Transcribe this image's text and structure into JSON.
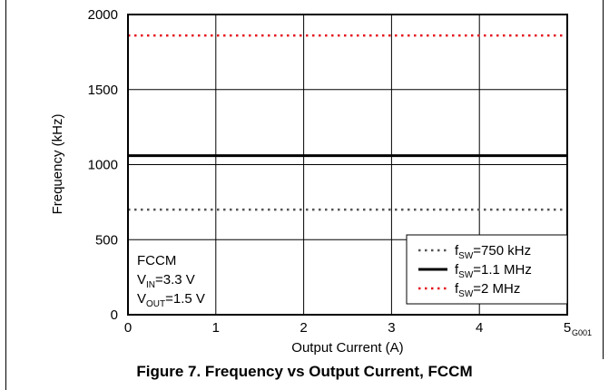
{
  "chart_data": {
    "type": "line",
    "xlabel": "Output Current (A)",
    "ylabel": "Frequency (kHz)",
    "xlim": [
      0,
      5
    ],
    "ylim": [
      0,
      2000
    ],
    "x_ticks": [
      "0",
      "1",
      "2",
      "3",
      "4",
      "5"
    ],
    "y_ticks": [
      "0",
      "500",
      "1000",
      "1500",
      "2000"
    ],
    "grid": true,
    "legend_position": "bottom-right",
    "series": [
      {
        "name_prefix": "f",
        "name_sub": "SW",
        "name_rest": "=750 kHz",
        "x": [
          0,
          5
        ],
        "y": [
          700,
          700
        ],
        "color": "#555555",
        "style": "dotted"
      },
      {
        "name_prefix": "f",
        "name_sub": "SW",
        "name_rest": "=1.1 MHz",
        "x": [
          0,
          5
        ],
        "y": [
          1060,
          1060
        ],
        "color": "#000000",
        "style": "solid"
      },
      {
        "name_prefix": "f",
        "name_sub": "SW",
        "name_rest": "=2 MHz",
        "x": [
          0,
          5
        ],
        "y": [
          1860,
          1860
        ],
        "color": "#e4151f",
        "style": "dotted"
      }
    ],
    "annotation": {
      "mode": "FCCM",
      "vin_prefix": "V",
      "vin_sub": "IN",
      "vin_rest": "=3.3 V",
      "vout_prefix": "V",
      "vout_sub": "OUT",
      "vout_rest": "=1.5 V"
    }
  },
  "figure_id": "G001",
  "caption": "Figure 7. Frequency vs Output Current, FCCM"
}
